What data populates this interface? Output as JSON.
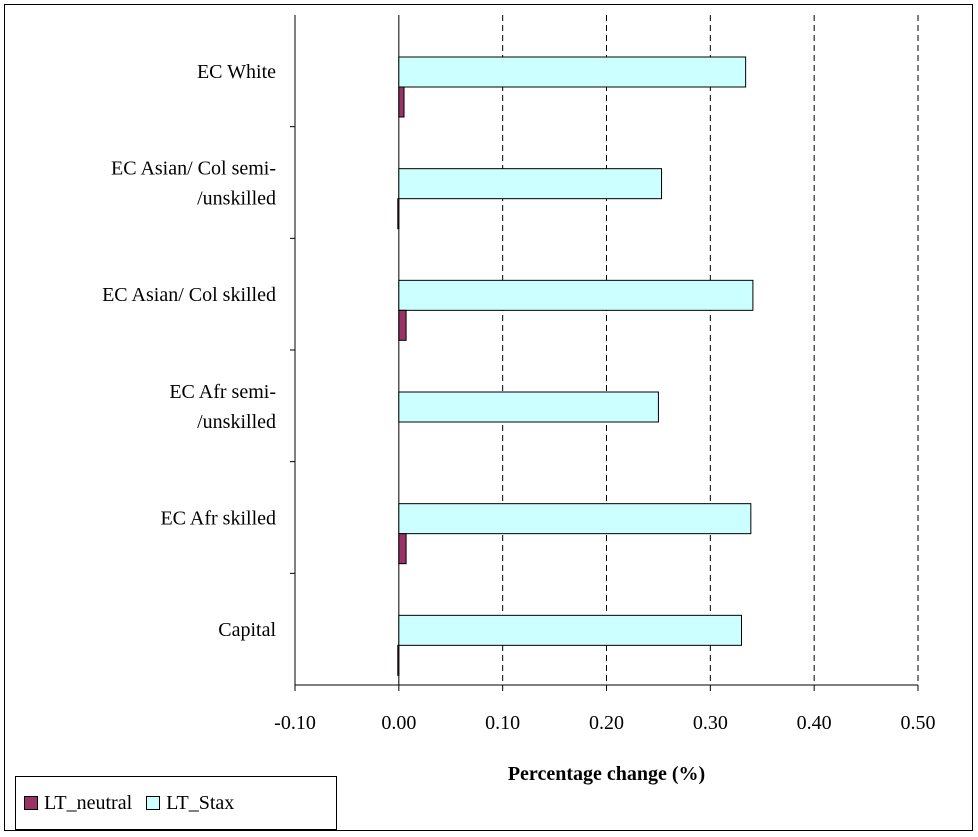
{
  "chart_data": {
    "type": "bar",
    "orientation": "horizontal",
    "title": "",
    "xlabel": "Percentage change (%)",
    "ylabel": "",
    "xlim": [
      -0.1,
      0.5
    ],
    "x_ticks": [
      -0.1,
      0.0,
      0.1,
      0.2,
      0.3,
      0.4,
      0.5
    ],
    "x_tick_labels": [
      "-0.10",
      "0.00",
      "0.10",
      "0.20",
      "0.30",
      "0.40",
      "0.50"
    ],
    "grid": "vertical dashed",
    "legend_position": "bottom-left",
    "categories": [
      [
        "EC White"
      ],
      [
        "EC Asian/ Col semi-",
        "/unskilled"
      ],
      [
        "EC Asian/ Col skilled"
      ],
      [
        "EC Afr semi-",
        "/unskilled"
      ],
      [
        "EC Afr skilled"
      ],
      [
        "Capital"
      ]
    ],
    "series": [
      {
        "name": "LT_neutral",
        "color": "#993366",
        "values": [
          0.005,
          -0.001,
          0.007,
          0.0,
          0.007,
          -0.001
        ]
      },
      {
        "name": "LT_Stax",
        "color": "#ccffff",
        "values": [
          0.334,
          0.253,
          0.341,
          0.25,
          0.339,
          0.33
        ]
      }
    ]
  }
}
